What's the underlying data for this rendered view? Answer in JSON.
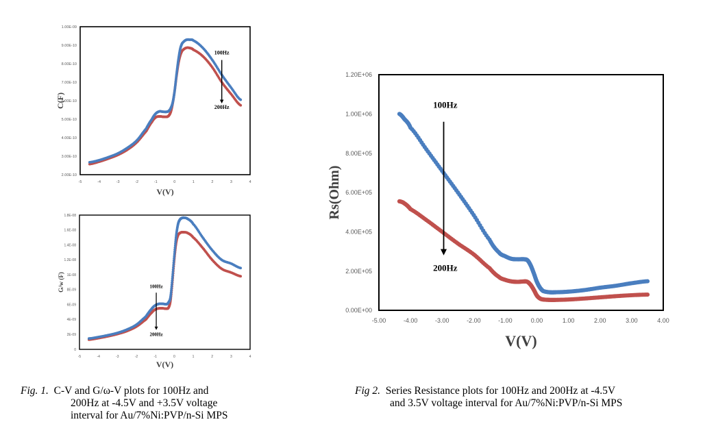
{
  "colors": {
    "series_100Hz": "#4a7ebf",
    "series_200Hz": "#c0504d",
    "frame": "#000000",
    "tick_text": "#595959"
  },
  "captions": {
    "fig1": {
      "label": "Fig. 1.",
      "lines": [
        "C-V and G/ω-V plots for 100Hz and",
        "200Hz at -4.5V and +3.5V voltage",
        "interval for Au/7%Ni:PVP/n-Si MPS"
      ]
    },
    "fig2": {
      "label": "Fig 2.",
      "lines": [
        "Series Resistance plots for 100Hz and 200Hz at -4.5V",
        "and 3.5V voltage interval for Au/7%Ni:PVP/n-Si MPS"
      ]
    }
  },
  "chart_data": [
    {
      "id": "cv",
      "type": "scatter",
      "title": "",
      "xlabel": "V(V)",
      "ylabel": "C(F)",
      "xlim": [
        -5,
        4
      ],
      "ylim": [
        2e-10,
        1e-09
      ],
      "xticks": [
        -5,
        -4,
        -3,
        -2,
        -1,
        0,
        1,
        2,
        3,
        4
      ],
      "xtick_labels": [
        "-5",
        "-4",
        "-3",
        "-2",
        "-1",
        "0",
        "1",
        "2",
        "3",
        "4"
      ],
      "yticks": [
        2e-10,
        3e-10,
        4e-10,
        5e-10,
        6e-10,
        7e-10,
        8e-10,
        9e-10,
        1e-09
      ],
      "ytick_labels": [
        "2.00E-10",
        "3.00E-10",
        "4.00E-10",
        "5.00E-10",
        "6.00E-10",
        "7.00E-10",
        "8.00E-10",
        "9.00E-10",
        "1.00E-09"
      ],
      "grid": false,
      "annotations": [
        {
          "text": "100Hz",
          "x": 2.5,
          "y": 8.5e-10
        },
        {
          "text": "200Hz",
          "x": 2.5,
          "y": 5.55e-10
        }
      ],
      "arrow": {
        "x": 2.5,
        "y_from": 8.2e-10,
        "y_to": 5.85e-10
      },
      "x": [
        -4.5,
        -4.0,
        -3.5,
        -3.0,
        -2.5,
        -2.0,
        -1.5,
        -1.2,
        -1.0,
        -0.8,
        -0.6,
        -0.4,
        -0.3,
        -0.2,
        -0.1,
        0.0,
        0.1,
        0.2,
        0.3,
        0.4,
        0.6,
        0.8,
        1.0,
        1.5,
        2.0,
        2.5,
        3.0,
        3.5
      ],
      "series": [
        {
          "name": "100Hz",
          "values": [
            2.67e-10,
            2.78e-10,
            2.95e-10,
            3.15e-10,
            3.45e-10,
            3.85e-10,
            4.5e-10,
            5e-10,
            5.3e-10,
            5.42e-10,
            5.4e-10,
            5.4e-10,
            5.45e-10,
            5.6e-10,
            5.9e-10,
            6.5e-10,
            7.4e-10,
            8.2e-10,
            8.8e-10,
            9.1e-10,
            9.28e-10,
            9.3e-10,
            9.25e-10,
            8.85e-10,
            8.2e-10,
            7.4e-10,
            6.7e-10,
            6.05e-10
          ]
        },
        {
          "name": "200Hz",
          "values": [
            2.57e-10,
            2.7e-10,
            2.87e-10,
            3.07e-10,
            3.35e-10,
            3.75e-10,
            4.35e-10,
            4.85e-10,
            5.1e-10,
            5.15e-10,
            5.13e-10,
            5.13e-10,
            5.2e-10,
            5.4e-10,
            5.85e-10,
            6.5e-10,
            7.3e-10,
            8e-10,
            8.45e-10,
            8.7e-10,
            8.85e-10,
            8.85e-10,
            8.75e-10,
            8.4e-10,
            7.8e-10,
            7e-10,
            6.35e-10,
            5.75e-10
          ]
        }
      ]
    },
    {
      "id": "gv",
      "type": "scatter",
      "title": "",
      "xlabel": "V(V)",
      "ylabel": "G/w (F)",
      "xlim": [
        -5,
        4
      ],
      "ylim": [
        0,
        1.8e-08
      ],
      "xticks": [
        -5,
        -4,
        -3,
        -2,
        -1,
        0,
        1,
        2,
        3,
        4
      ],
      "xtick_labels": [
        "-5",
        "-4",
        "-3",
        "-2",
        "-1",
        "0",
        "1",
        "2",
        "3",
        "4"
      ],
      "yticks": [
        0,
        2e-09,
        4e-09,
        6e-09,
        8e-09,
        1e-08,
        1.2e-08,
        1.4e-08,
        1.6e-08,
        1.8e-08
      ],
      "ytick_labels": [
        "0",
        "2E-09",
        "4E-09",
        "6E-09",
        "8E-09",
        "1E-08",
        "1.2E-08",
        "1.4E-08",
        "1.6E-08",
        "1.8E-08"
      ],
      "grid": false,
      "annotations": [
        {
          "text": "100Hz",
          "x": -0.95,
          "y": 8.2e-09
        },
        {
          "text": "200Hz",
          "x": -0.95,
          "y": 1.8e-09
        }
      ],
      "arrow": {
        "x": -0.95,
        "y_from": 7.6e-09,
        "y_to": 2.6e-09
      },
      "x": [
        -4.5,
        -4.0,
        -3.5,
        -3.0,
        -2.5,
        -2.0,
        -1.5,
        -1.2,
        -1.0,
        -0.8,
        -0.6,
        -0.4,
        -0.3,
        -0.2,
        -0.1,
        0.0,
        0.1,
        0.2,
        0.3,
        0.4,
        0.5,
        0.7,
        1.0,
        1.5,
        2.0,
        2.5,
        3.0,
        3.5
      ],
      "series": [
        {
          "name": "100Hz",
          "values": [
            1.45e-09,
            1.65e-09,
            1.9e-09,
            2.2e-09,
            2.65e-09,
            3.3e-09,
            4.4e-09,
            5.4e-09,
            5.9e-09,
            6.1e-09,
            6.1e-09,
            6.05e-09,
            6.3e-09,
            7e-09,
            9.5e-09,
            1.25e-08,
            1.52e-08,
            1.68e-08,
            1.74e-08,
            1.76e-08,
            1.765e-08,
            1.75e-08,
            1.68e-08,
            1.5e-08,
            1.33e-08,
            1.2e-08,
            1.15e-08,
            1.09e-08
          ]
        },
        {
          "name": "200Hz",
          "values": [
            1.3e-09,
            1.5e-09,
            1.75e-09,
            2.05e-09,
            2.45e-09,
            3.05e-09,
            4e-09,
            4.9e-09,
            5.35e-09,
            5.5e-09,
            5.5e-09,
            5.45e-09,
            5.6e-09,
            6.5e-09,
            9e-09,
            1.2e-08,
            1.43e-08,
            1.53e-08,
            1.56e-08,
            1.57e-08,
            1.57e-08,
            1.56e-08,
            1.5e-08,
            1.36e-08,
            1.2e-08,
            1.08e-08,
            1.03e-08,
            9.8e-09
          ]
        }
      ]
    },
    {
      "id": "rs",
      "type": "scatter",
      "title": "",
      "xlabel": "V(V)",
      "ylabel": "Rs(Ohm)",
      "xlim": [
        -5,
        4
      ],
      "ylim": [
        0,
        1200000.0
      ],
      "xticks": [
        -5,
        -4,
        -3,
        -2,
        -1,
        0,
        1,
        2,
        3,
        4
      ],
      "xtick_labels": [
        "-5.00",
        "-4.00",
        "-3.00",
        "-2.00",
        "-1.00",
        "0.00",
        "1.00",
        "2.00",
        "3.00",
        "4.00"
      ],
      "yticks": [
        0,
        200000.0,
        400000.0,
        600000.0,
        800000.0,
        1000000.0,
        1200000.0
      ],
      "ytick_labels": [
        "0.00E+00",
        "2.00E+05",
        "4.00E+05",
        "6.00E+05",
        "8.00E+05",
        "1.00E+06",
        "1.20E+06"
      ],
      "grid": false,
      "annotations": [
        {
          "text": "100Hz",
          "x": -2.9,
          "y": 1030000.0
        },
        {
          "text": "200Hz",
          "x": -2.9,
          "y": 200000.0
        }
      ],
      "arrow": {
        "x": -2.95,
        "y_from": 960000.0,
        "y_to": 280000.0
      },
      "x": [
        -4.35,
        -4.2,
        -4.0,
        -3.5,
        -3.0,
        -2.5,
        -2.0,
        -1.5,
        -1.2,
        -1.0,
        -0.8,
        -0.6,
        -0.4,
        -0.3,
        -0.2,
        -0.1,
        0.0,
        0.1,
        0.2,
        0.4,
        0.6,
        1.0,
        1.5,
        2.0,
        2.5,
        3.0,
        3.5
      ],
      "series": [
        {
          "name": "100Hz",
          "values": [
            1000000.0,
            975000.0,
            930000.0,
            820000.0,
            710000.0,
            600000.0,
            485000.0,
            360000.0,
            295000.0,
            275000.0,
            262000.0,
            260000.0,
            260000.0,
            255000.0,
            230000.0,
            190000.0,
            145000.0,
            115000.0,
            98000.0,
            92000.0,
            92000.0,
            95000.0,
            103000.0,
            115000.0,
            125000.0,
            138000.0,
            148000.0
          ]
        },
        {
          "name": "200Hz",
          "values": [
            555000.0,
            545000.0,
            515000.0,
            460000.0,
            400000.0,
            340000.0,
            285000.0,
            215000.0,
            170000.0,
            155000.0,
            147000.0,
            145000.0,
            147000.0,
            145000.0,
            130000.0,
            105000.0,
            75000.0,
            60000.0,
            55000.0,
            53000.0,
            53000.0,
            55000.0,
            60000.0,
            66000.0,
            72000.0,
            77000.0,
            80000.0
          ]
        }
      ]
    }
  ]
}
